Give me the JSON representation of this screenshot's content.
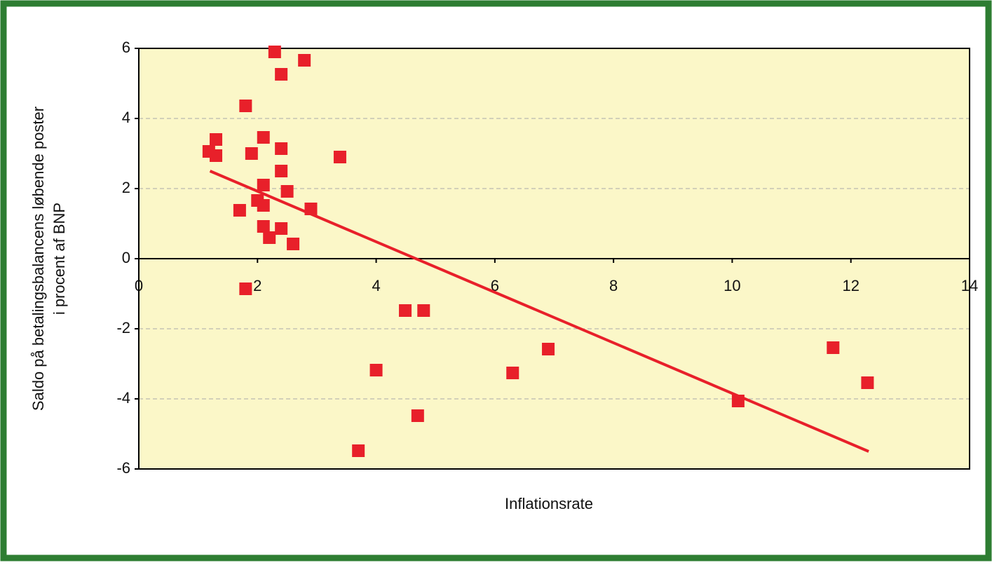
{
  "chart_data": {
    "type": "scatter",
    "xlabel": "Inflationsrate",
    "ylabel": [
      "Saldo på betalingsbalancens løbende poster",
      "i procent af BNP"
    ],
    "x": [
      2.29,
      2.79,
      2.4,
      1.8,
      1.3,
      1.18,
      1.3,
      1.9,
      2.1,
      2.4,
      3.39,
      2.4,
      2.1,
      2.5,
      2.0,
      2.1,
      1.7,
      2.9,
      2.1,
      2.4,
      2.2,
      2.6,
      1.8,
      4.49,
      4.8,
      4.0,
      6.9,
      6.3,
      4.7,
      3.7,
      10.1,
      11.7,
      12.28
    ],
    "values": [
      5.9,
      5.66,
      5.26,
      4.36,
      3.4,
      3.06,
      2.94,
      3.0,
      3.46,
      3.14,
      2.9,
      2.5,
      2.1,
      1.92,
      1.66,
      1.52,
      1.38,
      1.42,
      0.92,
      0.86,
      0.6,
      0.42,
      -0.86,
      -1.48,
      -1.48,
      -3.18,
      -2.58,
      -3.26,
      -4.48,
      -5.48,
      -4.06,
      -2.54,
      -3.54
    ],
    "color": "#e8202a",
    "trendline": {
      "x": [
        1.2,
        12.3
      ],
      "values": [
        2.5,
        -5.5
      ],
      "color": "#e8202a"
    },
    "xlim": [
      0,
      14
    ],
    "xticks": [
      0,
      2,
      4,
      6,
      8,
      10,
      12,
      14
    ],
    "ylim": [
      -6,
      6
    ],
    "yticks": [
      -6,
      -4,
      -2,
      0,
      2,
      4,
      6
    ],
    "grid": true
  }
}
